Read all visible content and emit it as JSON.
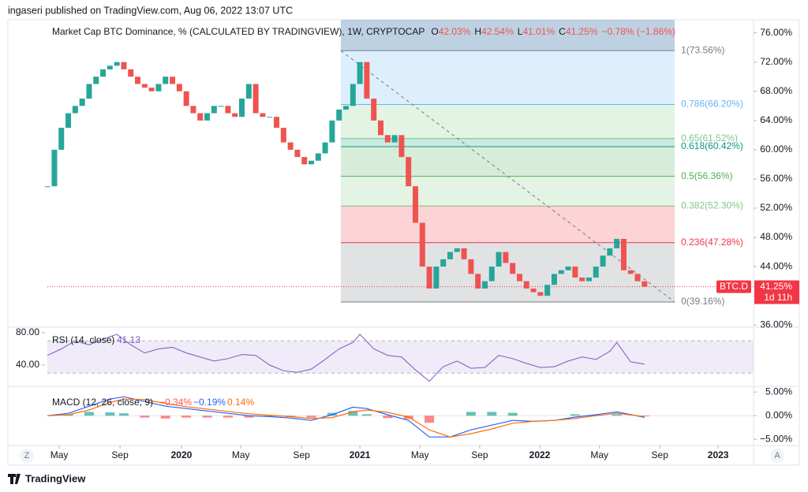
{
  "header": {
    "published": "ingaseri published on TradingView.com, Aug 06, 2022 13:07 UTC",
    "footer_brand": "TradingView",
    "zoom_button": "Z",
    "auto_button": "A"
  },
  "chart_data": {
    "type": "candlestick",
    "title": "Market Cap BTC Dominance, % (CALCULATED BY TRADINGVIEW), 1W, CRYPTOCAP",
    "ohlc": [
      {
        "key": "O",
        "value": "42.03%"
      },
      {
        "key": "H",
        "value": "42.54%"
      },
      {
        "key": "L",
        "value": "41.01%"
      },
      {
        "key": "C",
        "value": "41.25%"
      }
    ],
    "change": "−0.78% (−1.86%)",
    "up_color": "#26a69a",
    "down_color": "#ef5350",
    "x": [
      0,
      2,
      4,
      6,
      8,
      10,
      12,
      14,
      16,
      18,
      20,
      22,
      24,
      26,
      28,
      30,
      32,
      34,
      36,
      38,
      40,
      42,
      44,
      46,
      48,
      50,
      52,
      54,
      56,
      58,
      60,
      62,
      64,
      66,
      68,
      70,
      72,
      74,
      76,
      78,
      80,
      82,
      84,
      86,
      88,
      90,
      92,
      94,
      96,
      98,
      100,
      102,
      104,
      106,
      108,
      110,
      112,
      114,
      116,
      118,
      120,
      122,
      124,
      126,
      128,
      130,
      132,
      134,
      136,
      138,
      140,
      142,
      144,
      146,
      148,
      150,
      152,
      154,
      156,
      158,
      160,
      162,
      164,
      166,
      168,
      170,
      172
    ],
    "values": [
      55,
      60,
      63,
      65,
      66,
      67,
      69,
      70,
      71,
      71.5,
      72,
      71,
      70,
      69,
      68.5,
      68,
      69,
      70,
      69,
      68,
      66,
      65,
      64,
      65,
      66,
      66,
      65,
      64.5,
      67,
      69,
      65,
      64.5,
      64.5,
      63,
      61,
      60,
      59,
      58,
      58.5,
      59.5,
      61,
      64,
      65.5,
      66,
      69,
      72,
      67,
      64,
      62,
      61,
      62,
      59,
      55,
      50,
      44,
      41,
      44,
      45,
      46,
      46.5,
      45,
      43,
      41,
      42,
      44,
      46,
      44.5,
      43,
      42,
      41,
      40.5,
      40,
      41.5,
      43,
      43.5,
      44,
      42.5,
      42,
      42.5,
      44,
      45.5,
      46.5,
      47.8,
      43.5,
      43,
      42,
      41.25
    ],
    "xlim": [
      -11.4,
      203.4
    ],
    "xticks": [
      {
        "value": 3.4,
        "label": "May"
      },
      {
        "value": 20.9,
        "label": "Sep"
      },
      {
        "value": 38.6,
        "label": "2020"
      },
      {
        "value": 55.7,
        "label": "May"
      },
      {
        "value": 73.2,
        "label": "Sep"
      },
      {
        "value": 90,
        "label": "2021"
      },
      {
        "value": 107.3,
        "label": "May"
      },
      {
        "value": 124.5,
        "label": "Sep"
      },
      {
        "value": 141.8,
        "label": "2022"
      },
      {
        "value": 159,
        "label": "May"
      },
      {
        "value": 176.4,
        "label": "Sep"
      },
      {
        "value": 193.2,
        "label": "2023"
      }
    ],
    "ylim": [
      35.7,
      77.8
    ],
    "yticks": [
      {
        "value": 36,
        "label": "36.00%"
      },
      {
        "value": 40,
        "label": "40.00%"
      },
      {
        "value": 44,
        "label": "44.00%"
      },
      {
        "value": 48,
        "label": "48.00%"
      },
      {
        "value": 52,
        "label": "52.00%"
      },
      {
        "value": 56,
        "label": "56.00%"
      },
      {
        "value": 60,
        "label": "60.00%"
      },
      {
        "value": 64,
        "label": "64.00%"
      },
      {
        "value": 68,
        "label": "68.00%"
      },
      {
        "value": 72,
        "label": "72.00%"
      },
      {
        "value": 76,
        "label": "76.00%"
      }
    ],
    "last": {
      "value": 41.25,
      "symbol": "BTC.D",
      "label": "41.25%",
      "countdown": "1d 11h",
      "color": "#f23645"
    },
    "fib": {
      "x_range": [
        84.5,
        180.7
      ],
      "top_color": "#b3c9dd",
      "levels": [
        {
          "value": 73.56,
          "label": "1(73.56%)",
          "color": "#787b86"
        },
        {
          "value": 66.2,
          "label": "0.786(66.20%)",
          "color": "#64b5f6"
        },
        {
          "value": 61.52,
          "label": "0.65(61.52%)",
          "color": "#81c784"
        },
        {
          "value": 60.42,
          "label": "0.618(60.42%)",
          "color": "#089981"
        },
        {
          "value": 56.36,
          "label": "0.5(56.36%)",
          "color": "#4caf50"
        },
        {
          "value": 52.3,
          "label": "0.382(52.30%)",
          "color": "#81c784"
        },
        {
          "value": 47.28,
          "label": "0.236(47.28%)",
          "color": "#f23645"
        },
        {
          "value": 39.16,
          "label": "0(39.16%)",
          "color": "#787b86"
        }
      ]
    },
    "rsi": {
      "title": "RSI (14, close)",
      "last_label": "41.13",
      "color": "#7e57c2",
      "band": [
        30,
        70
      ],
      "x": [
        0,
        4,
        8,
        12,
        16,
        20,
        24,
        28,
        32,
        36,
        40,
        44,
        48,
        52,
        56,
        60,
        64,
        68,
        72,
        76,
        80,
        84,
        88,
        90,
        94,
        98,
        102,
        106,
        110,
        114,
        118,
        122,
        126,
        130,
        134,
        138,
        142,
        146,
        150,
        154,
        158,
        162,
        164,
        168,
        172
      ],
      "values": [
        52,
        60,
        70,
        65,
        72,
        78,
        65,
        55,
        60,
        62,
        55,
        50,
        45,
        48,
        53,
        52,
        40,
        33,
        31,
        35,
        47,
        60,
        68,
        78,
        60,
        52,
        50,
        34,
        20,
        38,
        45,
        36,
        37,
        52,
        48,
        42,
        37,
        38,
        45,
        50,
        47,
        57,
        68,
        44,
        41.13
      ],
      "ylim": [
        13.7,
        86.8
      ],
      "yticks": [
        {
          "value": 80,
          "label": "80.00"
        },
        {
          "value": 40,
          "label": "40.00"
        }
      ]
    },
    "macd": {
      "title": "MACD (12, 26, close, 9)",
      "labels": [
        "−0.34%",
        "−0.19%",
        "0.14%"
      ],
      "x": [
        0,
        6,
        12,
        18,
        22,
        28,
        34,
        40,
        46,
        52,
        58,
        64,
        70,
        76,
        82,
        88,
        92,
        98,
        104,
        110,
        116,
        122,
        128,
        134,
        140,
        146,
        152,
        158,
        164,
        172
      ],
      "series": [
        {
          "name": "MACD",
          "color": "#2962ff",
          "values": [
            0,
            0.5,
            2,
            3.5,
            4,
            3,
            2,
            1.5,
            1,
            0.5,
            0,
            -0.2,
            -0.5,
            -1,
            0.2,
            1.8,
            1.5,
            0.2,
            -1,
            -4.5,
            -4.5,
            -3,
            -2,
            -1,
            -1.2,
            -1,
            -0.3,
            0.2,
            0.8,
            -0.34
          ]
        },
        {
          "name": "Signal",
          "color": "#ff6d00",
          "values": [
            0,
            0.2,
            1.2,
            2.8,
            3.5,
            3.4,
            2.6,
            1.9,
            1.4,
            0.9,
            0.4,
            0.1,
            -0.2,
            -0.6,
            -0.4,
            0.8,
            1.2,
            0.7,
            -0.3,
            -3,
            -4.5,
            -3.8,
            -2.8,
            -1.6,
            -1.2,
            -1,
            -0.6,
            0,
            0.5,
            -0.19
          ]
        }
      ],
      "histogram": [
        0,
        0.3,
        0.8,
        0.7,
        0.5,
        -0.4,
        -0.6,
        -0.4,
        -0.4,
        -0.4,
        -0.4,
        -0.3,
        -0.3,
        -0.4,
        0.6,
        1,
        0.3,
        -0.5,
        -0.7,
        -1.5,
        0,
        0.8,
        0.8,
        0.6,
        0,
        0,
        0.3,
        0.2,
        0.3,
        -0.15
      ],
      "hist_colors": [
        "#26a69a",
        "#ff5252"
      ],
      "ylim": [
        -6.3,
        6.2
      ],
      "yticks": [
        {
          "value": 5,
          "label": "5.00%"
        },
        {
          "value": 0,
          "label": "0.00%"
        },
        {
          "value": -5,
          "label": "−5.00%"
        }
      ]
    }
  }
}
